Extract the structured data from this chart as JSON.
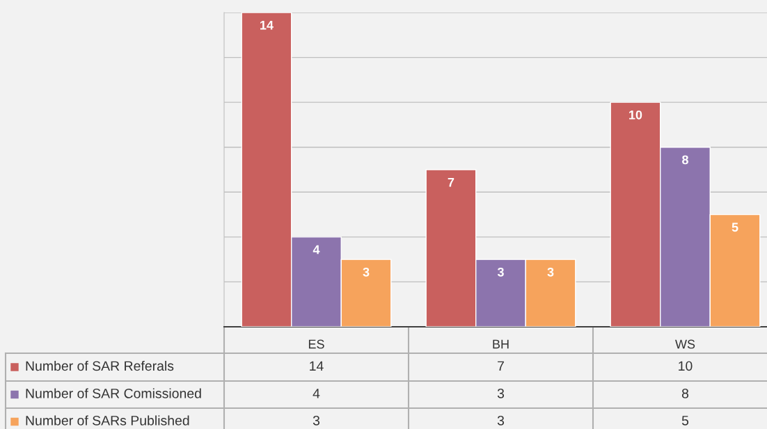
{
  "chart_data": {
    "type": "bar",
    "categories": [
      "ES",
      "BH",
      "WS"
    ],
    "series": [
      {
        "name": "Number of SAR Referals",
        "color": "#c9605e",
        "values": [
          14,
          7,
          10
        ],
        "value_labels": [
          "14",
          "7",
          "10"
        ]
      },
      {
        "name": "Number of SAR Comissioned",
        "color": "#8c74ad",
        "values": [
          4,
          3,
          8
        ],
        "value_labels": [
          "4",
          "3",
          "8"
        ]
      },
      {
        "name": "Number of SARs Published",
        "color": "#f6a35c",
        "values": [
          3,
          3,
          5
        ],
        "value_labels": [
          "3",
          "3",
          "5"
        ]
      }
    ],
    "ylim": [
      0,
      14
    ],
    "yticks": [
      {
        "value": 0,
        "label": null
      },
      {
        "value": 2,
        "label": null
      },
      {
        "value": 4,
        "label": null
      },
      {
        "value": 6,
        "label": null
      },
      {
        "value": 8,
        "label": null
      },
      {
        "value": 10,
        "label": null
      },
      {
        "value": 12,
        "label": null
      },
      {
        "value": 14,
        "label": null
      }
    ],
    "grid": "y",
    "tick_labels": "x",
    "legend": "bottom left",
    "annotations": [
      "14",
      "7",
      "10",
      "4",
      "3",
      "8",
      "3",
      "3",
      "5"
    ]
  }
}
